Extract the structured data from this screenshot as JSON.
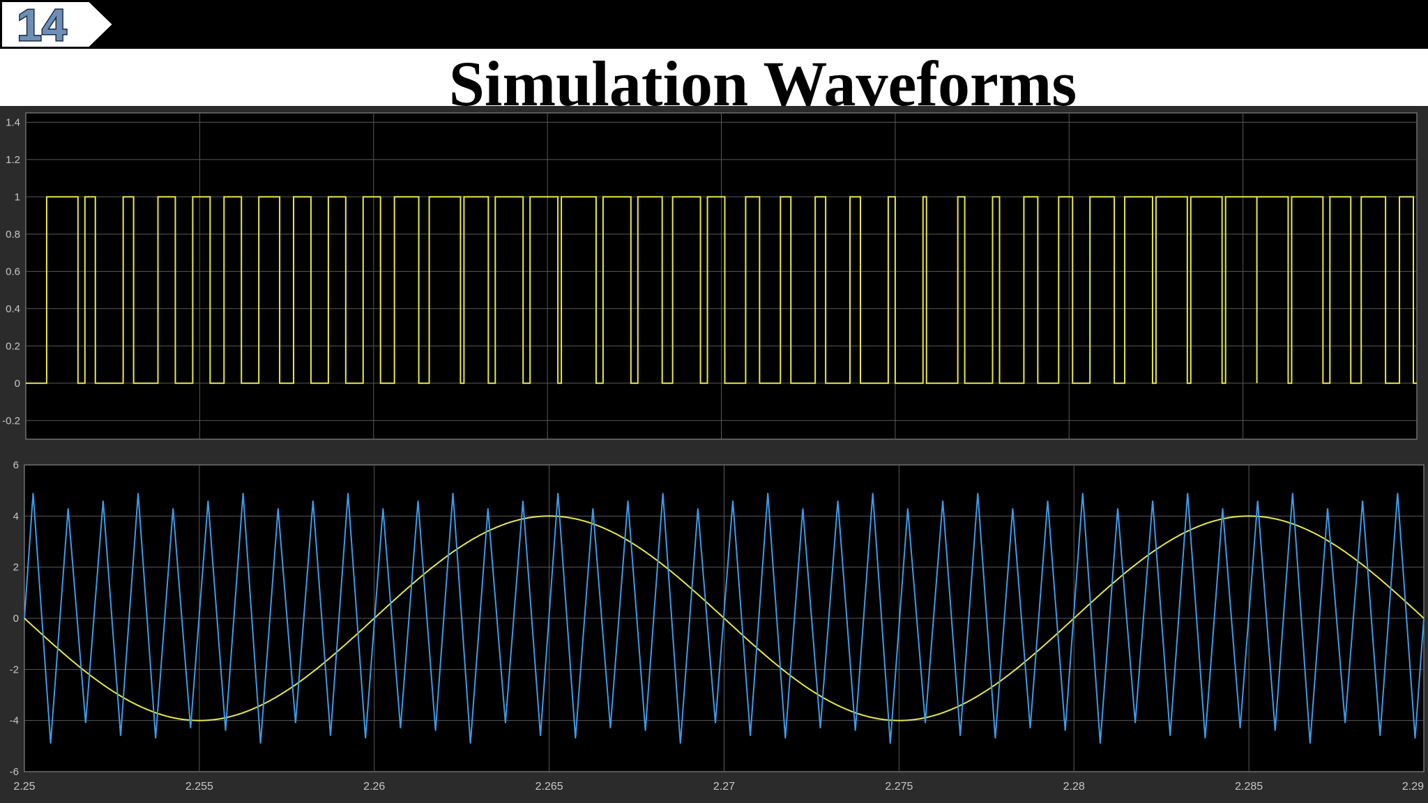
{
  "slide": {
    "number": "14",
    "title": "Simulation Waveforms"
  },
  "colors": {
    "background": "#ffffff",
    "bar": "#000000",
    "scope_bg": "#2b2b2b",
    "axes_bg": "#000000",
    "grid": "#5a5a5a",
    "tick_text": "#c8c8c8",
    "pulse": "#e8e84a",
    "carrier": "#3d9be9",
    "reference": "#e8e84a",
    "badge_fill": "#6e8fb5"
  },
  "chart_data": [
    {
      "type": "line",
      "xlim": [
        2.25,
        2.29
      ],
      "ylim": [
        -0.3,
        1.45
      ],
      "yticks": [
        "1.4",
        "1.2",
        "1",
        "0.8",
        "0.6",
        "0.4",
        "0.2",
        "0",
        "-0.2"
      ],
      "ytick_values": [
        1.4,
        1.2,
        1,
        0.8,
        0.6,
        0.4,
        0.2,
        0,
        -0.2
      ],
      "xticks_grid": [
        2.25,
        2.255,
        2.26,
        2.265,
        2.27,
        2.275,
        2.28,
        2.285,
        2.29
      ],
      "grid": true,
      "series": [
        {
          "style": "step",
          "color": "#e8e84a",
          "description": "PWM gate pulses, 0/1 levels",
          "pulses_on": [
            [
              2.2506,
              2.2515
            ],
            [
              2.2517,
              2.252
            ],
            [
              2.2528,
              2.2531
            ],
            [
              2.2538,
              2.2543
            ],
            [
              2.2548,
              2.2553
            ],
            [
              2.2557,
              2.2562
            ],
            [
              2.2567,
              2.2573
            ],
            [
              2.2577,
              2.2582
            ],
            [
              2.2587,
              2.2592
            ],
            [
              2.2597,
              2.2602
            ],
            [
              2.2606,
              2.2613
            ],
            [
              2.2616,
              2.2625
            ],
            [
              2.2626,
              2.2633
            ],
            [
              2.2635,
              2.2643
            ],
            [
              2.2645,
              2.2653
            ],
            [
              2.2654,
              2.2664
            ],
            [
              2.2666,
              2.2674
            ],
            [
              2.2676,
              2.2683
            ],
            [
              2.2686,
              2.2694
            ],
            [
              2.2696,
              2.2701
            ],
            [
              2.2707,
              2.2711
            ],
            [
              2.2717,
              2.272
            ],
            [
              2.2727,
              2.273
            ],
            [
              2.2737,
              2.274
            ],
            [
              2.2748,
              2.275
            ],
            [
              2.2758,
              2.2759
            ],
            [
              2.2768,
              2.277
            ],
            [
              2.2778,
              2.278
            ],
            [
              2.2787,
              2.2791
            ],
            [
              2.2797,
              2.2801
            ],
            [
              2.2806,
              2.2813
            ],
            [
              2.2816,
              2.2824
            ],
            [
              2.2825,
              2.2834
            ],
            [
              2.2835,
              2.2844
            ],
            [
              2.2845,
              2.2854
            ],
            [
              2.2854,
              2.2863
            ],
            [
              2.2864,
              2.2873
            ],
            [
              2.2875,
              2.2881
            ],
            [
              2.2884,
              2.2891
            ],
            [
              2.2895,
              2.2899
            ]
          ]
        }
      ]
    },
    {
      "type": "line",
      "xlim": [
        2.25,
        2.29
      ],
      "ylim": [
        -6,
        6
      ],
      "yticks": [
        "6",
        "4",
        "2",
        "0",
        "-2",
        "-4",
        "-6"
      ],
      "ytick_values": [
        6,
        4,
        2,
        0,
        -2,
        -4,
        -6
      ],
      "xticks": [
        "2.25",
        "2.255",
        "2.26",
        "2.265",
        "2.27",
        "2.275",
        "2.28",
        "2.285",
        "2.29"
      ],
      "xtick_values": [
        2.25,
        2.255,
        2.26,
        2.265,
        2.27,
        2.275,
        2.28,
        2.285,
        2.29
      ],
      "grid": true,
      "series": [
        {
          "style": "sine",
          "color": "#e8e84a",
          "description": "sinusoidal reference",
          "amplitude": 4,
          "period": 0.02,
          "zero_crossing_down": 2.25,
          "minimum_at": [
            2.255,
            2.275
          ],
          "maximum_at": [
            2.265,
            2.285
          ]
        },
        {
          "style": "triangle",
          "color": "#3d9be9",
          "description": "triangular carrier",
          "amplitude": 4,
          "peak_overshoot": 4.9,
          "period": 0.001
        }
      ]
    }
  ]
}
